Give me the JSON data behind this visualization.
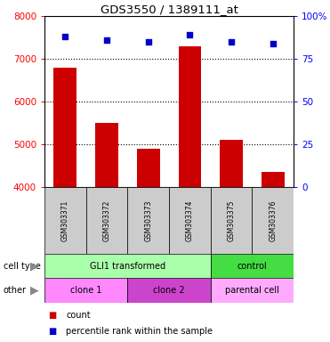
{
  "title": "GDS3550 / 1389111_at",
  "samples": [
    "GSM303371",
    "GSM303372",
    "GSM303373",
    "GSM303374",
    "GSM303375",
    "GSM303376"
  ],
  "bar_values": [
    6800,
    5500,
    4900,
    7300,
    5100,
    4350
  ],
  "percentile_values": [
    88,
    86,
    85,
    89,
    85,
    84
  ],
  "ylim_left": [
    4000,
    8000
  ],
  "ylim_right": [
    0,
    100
  ],
  "yticks_left": [
    4000,
    5000,
    6000,
    7000,
    8000
  ],
  "yticks_right": [
    0,
    25,
    50,
    75,
    100
  ],
  "ytick_labels_right": [
    "0",
    "25",
    "50",
    "75",
    "100%"
  ],
  "bar_color": "#CC0000",
  "scatter_color": "#0000CC",
  "cell_type_groups": [
    {
      "label": "GLI1 transformed",
      "start": 0,
      "end": 4,
      "color": "#AAFFAA"
    },
    {
      "label": "control",
      "start": 4,
      "end": 6,
      "color": "#44DD44"
    }
  ],
  "other_groups": [
    {
      "label": "clone 1",
      "start": 0,
      "end": 2,
      "color": "#FF88FF"
    },
    {
      "label": "clone 2",
      "start": 2,
      "end": 4,
      "color": "#CC44CC"
    },
    {
      "label": "parental cell",
      "start": 4,
      "end": 6,
      "color": "#FFAAFF"
    }
  ],
  "legend_count_label": "count",
  "legend_pct_label": "percentile rank within the sample",
  "cell_type_label": "cell type",
  "other_label": "other",
  "sample_bg_color": "#CCCCCC",
  "figsize": [
    3.71,
    3.84
  ],
  "dpi": 100
}
